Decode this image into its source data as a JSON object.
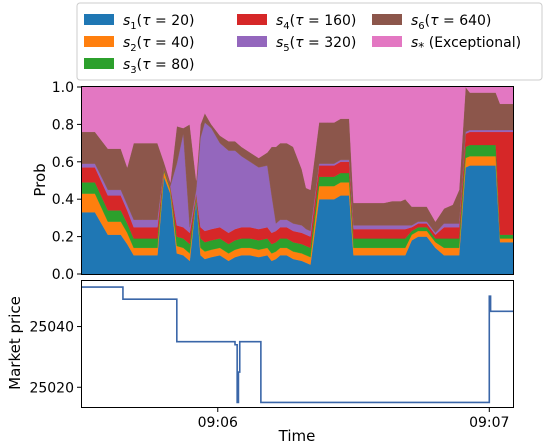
{
  "chart_data": [
    {
      "type": "area",
      "stacked": true,
      "ylabel": "Prob",
      "ylim": [
        0,
        1.0
      ],
      "yticks": [
        0.0,
        0.2,
        0.4,
        0.6,
        0.8,
        1.0
      ],
      "ytick_labels": [
        "0.0",
        "0.2",
        "0.4",
        "0.6",
        "0.8",
        "1.0"
      ],
      "grid": false,
      "legend": {
        "placement": "top",
        "columns": 3,
        "entries": [
          {
            "sub": "1",
            "tau": "20",
            "color": "#1f77b4"
          },
          {
            "sub": "2",
            "tau": "40",
            "color": "#ff7f0e"
          },
          {
            "sub": "3",
            "tau": "80",
            "color": "#2ca02c"
          },
          {
            "sub": "4",
            "tau": "160",
            "color": "#d62728"
          },
          {
            "sub": "5",
            "tau": "320",
            "color": "#9467bd"
          },
          {
            "sub": "6",
            "tau": "640",
            "color": "#8c564b"
          },
          {
            "sub": "*",
            "text": "(Exceptional)",
            "color": "#e377c2"
          }
        ]
      },
      "x": [
        0,
        0.03,
        0.06,
        0.09,
        0.105,
        0.12,
        0.14,
        0.16,
        0.175,
        0.19,
        0.205,
        0.22,
        0.235,
        0.25,
        0.265,
        0.275,
        0.285,
        0.3,
        0.32,
        0.34,
        0.355,
        0.37,
        0.39,
        0.41,
        0.43,
        0.44,
        0.45,
        0.46,
        0.475,
        0.49,
        0.51,
        0.52,
        0.53,
        0.55,
        0.57,
        0.585,
        0.6,
        0.62,
        0.63,
        0.65,
        0.68,
        0.7,
        0.72,
        0.74,
        0.75,
        0.765,
        0.78,
        0.8,
        0.82,
        0.84,
        0.86,
        0.875,
        0.89,
        0.9,
        0.92,
        0.94,
        0.96,
        0.97,
        0.98,
        1.0
      ],
      "series": [
        {
          "values": [
            0.33,
            0.33,
            0.21,
            0.21,
            0.16,
            0.1,
            0.1,
            0.1,
            0.1,
            0.52,
            0.43,
            0.11,
            0.1,
            0.07,
            0.4,
            0.1,
            0.08,
            0.09,
            0.1,
            0.07,
            0.09,
            0.1,
            0.1,
            0.09,
            0.1,
            0.07,
            0.08,
            0.1,
            0.1,
            0.08,
            0.07,
            0.06,
            0.05,
            0.4,
            0.4,
            0.4,
            0.42,
            0.42,
            0.1,
            0.1,
            0.1,
            0.1,
            0.1,
            0.1,
            0.1,
            0.18,
            0.2,
            0.2,
            0.14,
            0.1,
            0.1,
            0.1,
            0.57,
            0.58,
            0.58,
            0.58,
            0.58,
            0.17,
            0.17,
            0.17
          ]
        },
        {
          "values": [
            0.1,
            0.1,
            0.07,
            0.07,
            0.06,
            0.04,
            0.04,
            0.04,
            0.04,
            0.03,
            0.02,
            0.04,
            0.04,
            0.04,
            0.01,
            0.04,
            0.04,
            0.04,
            0.04,
            0.04,
            0.04,
            0.04,
            0.04,
            0.04,
            0.04,
            0.04,
            0.04,
            0.04,
            0.04,
            0.04,
            0.04,
            0.04,
            0.04,
            0.07,
            0.07,
            0.07,
            0.07,
            0.07,
            0.04,
            0.04,
            0.04,
            0.04,
            0.04,
            0.04,
            0.04,
            0.03,
            0.03,
            0.03,
            0.03,
            0.04,
            0.04,
            0.04,
            0.05,
            0.05,
            0.05,
            0.05,
            0.05,
            0.02,
            0.02,
            0.02
          ]
        },
        {
          "values": [
            0.06,
            0.06,
            0.06,
            0.06,
            0.05,
            0.05,
            0.05,
            0.05,
            0.05,
            0.01,
            0.01,
            0.05,
            0.05,
            0.05,
            0.01,
            0.05,
            0.05,
            0.05,
            0.05,
            0.05,
            0.05,
            0.05,
            0.05,
            0.05,
            0.05,
            0.05,
            0.05,
            0.05,
            0.05,
            0.05,
            0.05,
            0.05,
            0.05,
            0.05,
            0.05,
            0.05,
            0.05,
            0.05,
            0.05,
            0.05,
            0.05,
            0.05,
            0.05,
            0.05,
            0.05,
            0.02,
            0.02,
            0.02,
            0.02,
            0.05,
            0.05,
            0.05,
            0.06,
            0.06,
            0.06,
            0.06,
            0.06,
            0.02,
            0.02,
            0.02
          ]
        },
        {
          "values": [
            0.08,
            0.08,
            0.08,
            0.08,
            0.07,
            0.06,
            0.06,
            0.06,
            0.06,
            0.01,
            0.01,
            0.06,
            0.06,
            0.06,
            0.01,
            0.06,
            0.06,
            0.06,
            0.06,
            0.06,
            0.06,
            0.06,
            0.06,
            0.06,
            0.06,
            0.06,
            0.06,
            0.06,
            0.06,
            0.06,
            0.06,
            0.06,
            0.06,
            0.06,
            0.06,
            0.06,
            0.06,
            0.06,
            0.05,
            0.05,
            0.05,
            0.05,
            0.05,
            0.05,
            0.05,
            0.02,
            0.02,
            0.02,
            0.02,
            0.06,
            0.06,
            0.06,
            0.07,
            0.07,
            0.07,
            0.07,
            0.07,
            0.55,
            0.55,
            0.55
          ]
        },
        {
          "values": [
            0.02,
            0.02,
            0.03,
            0.03,
            0.03,
            0.04,
            0.04,
            0.04,
            0.04,
            0.0,
            0.0,
            0.33,
            0.5,
            0.03,
            0.02,
            0.48,
            0.58,
            0.54,
            0.45,
            0.44,
            0.42,
            0.38,
            0.35,
            0.33,
            0.33,
            0.2,
            0.04,
            0.04,
            0.04,
            0.04,
            0.04,
            0.03,
            0.03,
            0.01,
            0.01,
            0.01,
            0.01,
            0.01,
            0.02,
            0.02,
            0.02,
            0.02,
            0.02,
            0.02,
            0.02,
            0.01,
            0.01,
            0.01,
            0.01,
            0.02,
            0.02,
            0.02,
            0.01,
            0.01,
            0.01,
            0.01,
            0.01,
            0.01,
            0.01,
            0.01
          ]
        },
        {
          "values": [
            0.17,
            0.17,
            0.22,
            0.22,
            0.2,
            0.41,
            0.41,
            0.41,
            0.41,
            0.03,
            0.02,
            0.2,
            0.03,
            0.55,
            0.05,
            0.07,
            0.05,
            0.02,
            0.04,
            0.05,
            0.05,
            0.05,
            0.05,
            0.05,
            0.07,
            0.26,
            0.41,
            0.41,
            0.41,
            0.41,
            0.3,
            0.22,
            0.22,
            0.22,
            0.22,
            0.22,
            0.22,
            0.22,
            0.12,
            0.12,
            0.12,
            0.12,
            0.13,
            0.13,
            0.14,
            0.1,
            0.08,
            0.08,
            0.06,
            0.08,
            0.1,
            0.18,
            0.24,
            0.2,
            0.2,
            0.2,
            0.2,
            0.14,
            0.14,
            0.14
          ]
        },
        {
          "values": [
            0.24,
            0.24,
            0.33,
            0.33,
            0.43,
            0.3,
            0.3,
            0.3,
            0.3,
            0.4,
            0.51,
            0.21,
            0.22,
            0.2,
            0.5,
            0.2,
            0.14,
            0.2,
            0.26,
            0.29,
            0.29,
            0.32,
            0.35,
            0.38,
            0.35,
            0.32,
            0.32,
            0.3,
            0.3,
            0.32,
            0.44,
            0.54,
            0.55,
            0.19,
            0.19,
            0.19,
            0.17,
            0.17,
            0.62,
            0.62,
            0.62,
            0.62,
            0.61,
            0.61,
            0.6,
            0.64,
            0.64,
            0.64,
            0.72,
            0.65,
            0.63,
            0.55,
            0.0,
            0.03,
            0.03,
            0.03,
            0.03,
            0.09,
            0.09,
            0.09
          ]
        }
      ]
    },
    {
      "type": "line",
      "xlabel": "Time",
      "ylabel": "Market price",
      "ylim": [
        25013.5,
        25055
      ],
      "yticks": [
        25020,
        25040
      ],
      "ytick_labels": [
        "25020",
        "25040"
      ],
      "xticks": [
        0.315,
        0.945
      ],
      "xtick_labels": [
        "09:06",
        "09:07"
      ],
      "grid": false,
      "color": "#3a66a8",
      "step_points": [
        [
          0,
          25053
        ],
        [
          0.095,
          25053
        ],
        [
          0.095,
          25049
        ],
        [
          0.22,
          25049
        ],
        [
          0.22,
          25035
        ],
        [
          0.355,
          25035
        ],
        [
          0.355,
          25034
        ],
        [
          0.36,
          25034
        ],
        [
          0.36,
          25015
        ],
        [
          0.363,
          25015
        ],
        [
          0.363,
          25025
        ],
        [
          0.366,
          25025
        ],
        [
          0.366,
          25035
        ],
        [
          0.415,
          25035
        ],
        [
          0.415,
          25015
        ],
        [
          0.945,
          25015
        ],
        [
          0.945,
          25050
        ],
        [
          0.948,
          25050
        ],
        [
          0.948,
          25045
        ],
        [
          1.0,
          25045
        ]
      ]
    }
  ]
}
